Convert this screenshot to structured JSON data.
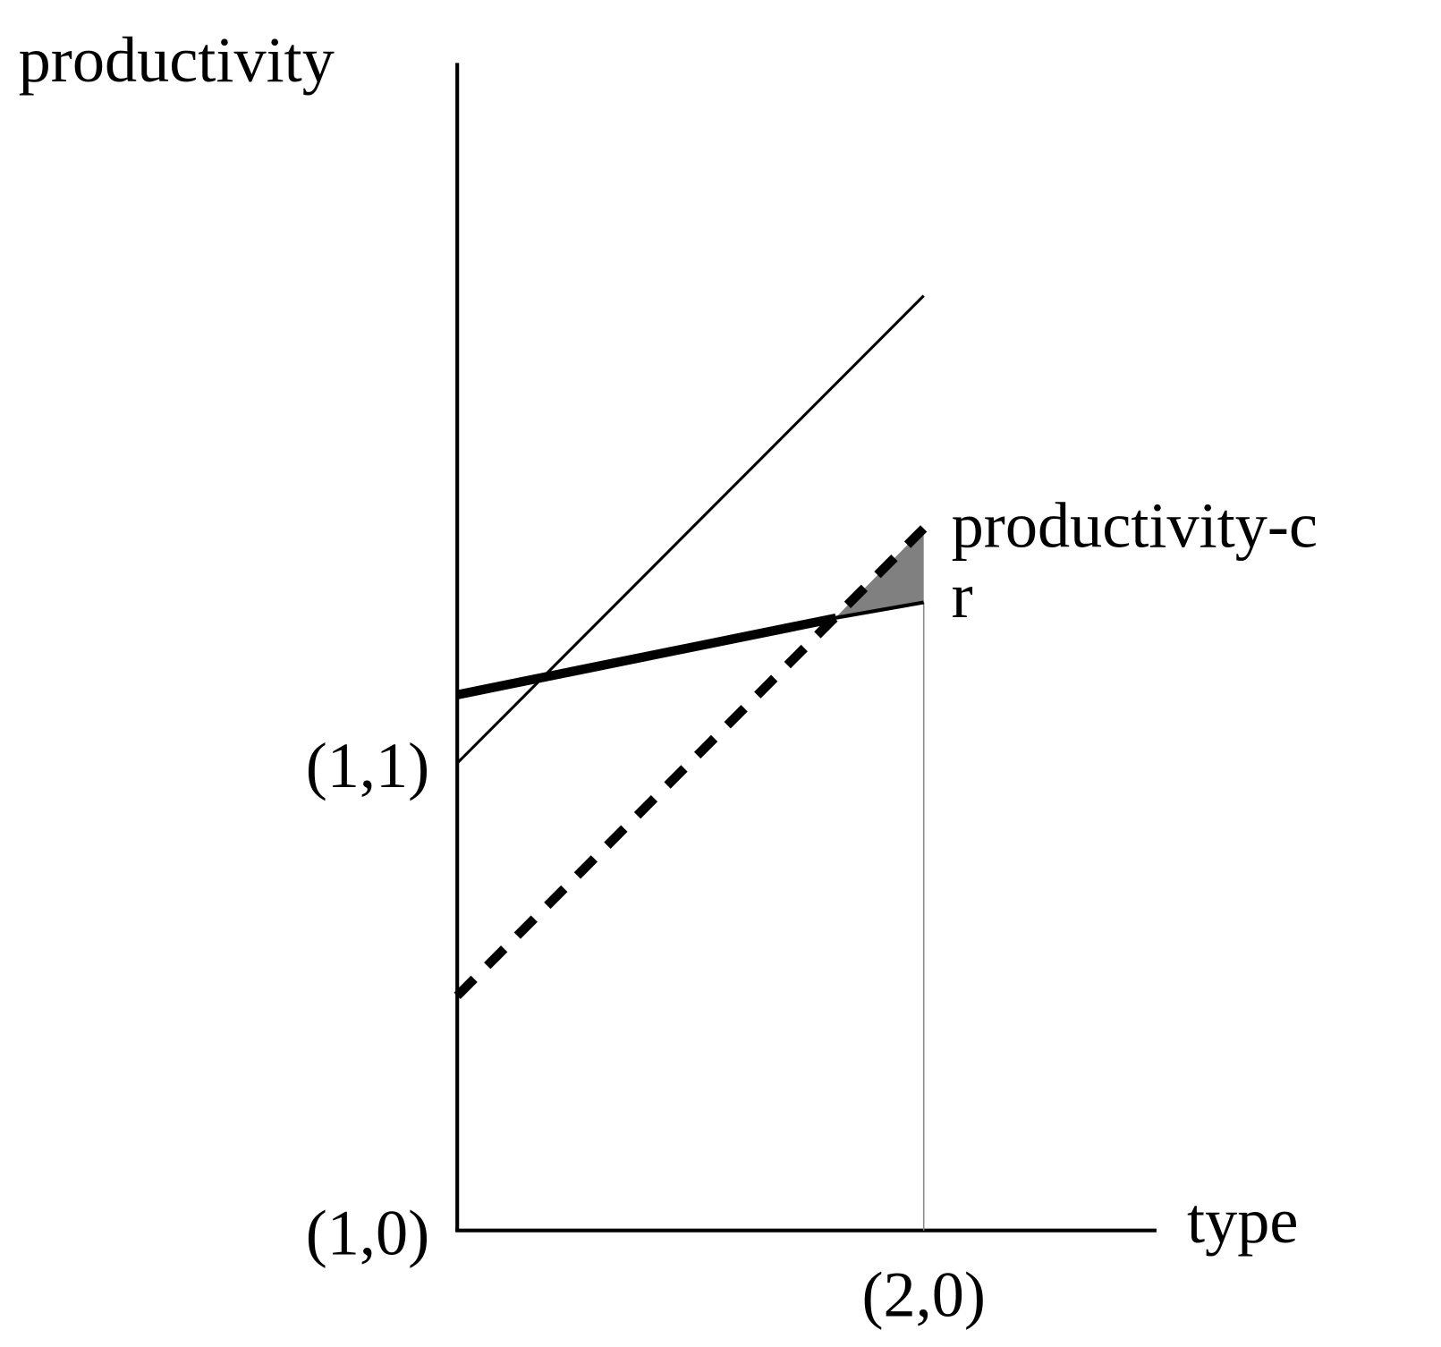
{
  "axes": {
    "y_label": "productivity",
    "x_label": "type",
    "origin_label": "(1,0)",
    "y_mark_label": "(1,1)",
    "x_mark_label": "(2,0)"
  },
  "curves": {
    "upper_label": "productivity-c",
    "lower_label": "r"
  }
}
